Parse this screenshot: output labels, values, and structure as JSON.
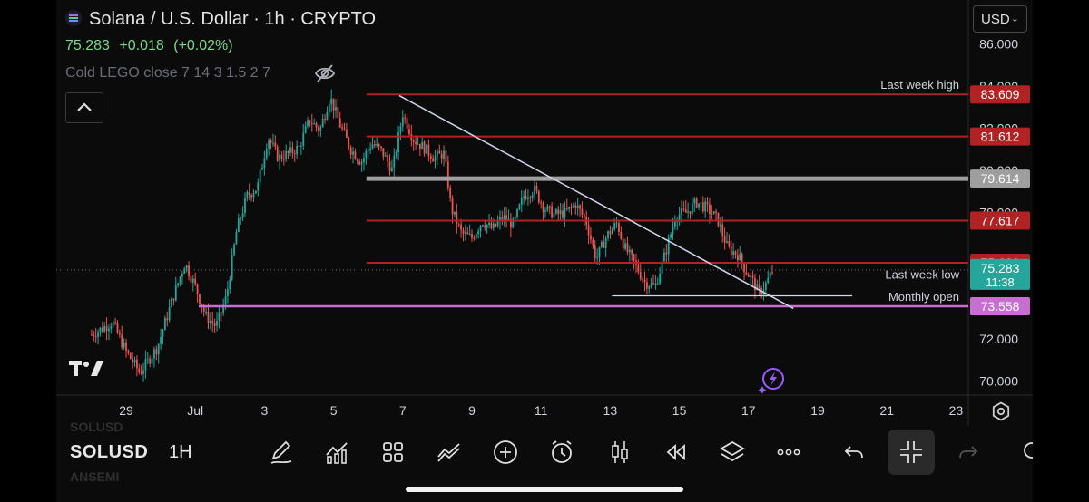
{
  "header": {
    "title": "Solana / U.S. Dollar · 1h · CRYPTO",
    "last_price": "75.283",
    "change": "+0.018",
    "change_pct": "(+0.02%)",
    "indicator": "Cold LEGO close 7 14 3 1.5 2 7"
  },
  "currency": {
    "label": "USD"
  },
  "toolbar": {
    "symbol": "SOLUSD",
    "interval": "1H",
    "ghost_top": "SOLUSD",
    "ghost_bottom": "ANSEMI"
  },
  "icons": [
    "eye-off-icon",
    "chevron-up-icon",
    "tradingview-logo-icon",
    "bolt-icon",
    "settings-icon",
    "pencil-icon",
    "indicators-icon",
    "layout-icon",
    "compare-icon",
    "add-icon",
    "alarm-icon",
    "candles-icon",
    "replay-icon",
    "layers-icon",
    "more-icon",
    "undo-icon",
    "fullscreen-exit-icon",
    "redo-icon"
  ],
  "colors": {
    "up": "#26a69a",
    "down": "#ef5350",
    "resistance": "#b22222",
    "grey": "#9e9e9e",
    "purple": "#c66fd1",
    "trend": "#d0d6ee",
    "current": "#26a69a"
  },
  "chart_data": {
    "type": "candlestick",
    "ylim": [
      69.6,
      86.8
    ],
    "y_ticks": [
      "86.000",
      "84.000",
      "82.000",
      "80.000",
      "78.000",
      "72.000",
      "70.000"
    ],
    "x_ticks": [
      {
        "label": "29",
        "day": -1
      },
      {
        "label": "Jul",
        "day": 1
      },
      {
        "label": "3",
        "day": 3
      },
      {
        "label": "5",
        "day": 5
      },
      {
        "label": "7",
        "day": 7
      },
      {
        "label": "9",
        "day": 9
      },
      {
        "label": "11",
        "day": 11
      },
      {
        "label": "13",
        "day": 13
      },
      {
        "label": "15",
        "day": 15
      },
      {
        "label": "17",
        "day": 17
      },
      {
        "label": "19",
        "day": 19
      },
      {
        "label": "21",
        "day": 21
      },
      {
        "label": "23",
        "day": 23
      }
    ],
    "horizontal_levels": [
      {
        "value": 83.609,
        "label": "83.609",
        "name": "Last week high",
        "color": "#b22222",
        "from_day": 5.95
      },
      {
        "value": 81.612,
        "label": "81.612",
        "name": "",
        "color": "#b22222",
        "from_day": 5.95
      },
      {
        "value": 79.614,
        "label": "79.614",
        "name": "",
        "color": "#9e9e9e",
        "from_day": 5.95
      },
      {
        "value": 77.617,
        "label": "77.617",
        "name": "",
        "color": "#b22222",
        "from_day": 5.95
      },
      {
        "value": 75.62,
        "label": "75.620",
        "name": "",
        "color": "#b22222",
        "from_day": 5.95
      },
      {
        "value": 73.558,
        "label": "73.558",
        "name": "Monthly open",
        "color": "#c66fd1",
        "from_day": 1.1
      }
    ],
    "last_week_low": {
      "value": 74.05,
      "name": "Last week low",
      "from_day": 13.05,
      "to_day": 20.0
    },
    "trendline": {
      "from": {
        "day": 6.9,
        "price": 83.55
      },
      "to": {
        "day": 18.3,
        "price": 73.45
      }
    },
    "current": {
      "price": "75.283",
      "countdown": "11:38",
      "value": 75.283
    },
    "path": [
      [
        -2.0,
        72.2
      ],
      [
        -1.4,
        72.8
      ],
      [
        -1.0,
        71.4
      ],
      [
        -0.6,
        70.4
      ],
      [
        -0.1,
        71.6
      ],
      [
        0.4,
        74.2
      ],
      [
        0.7,
        75.6
      ],
      [
        1.0,
        74.5
      ],
      [
        1.3,
        73.1
      ],
      [
        1.6,
        72.6
      ],
      [
        1.9,
        74.0
      ],
      [
        2.2,
        77.2
      ],
      [
        2.5,
        78.8
      ],
      [
        2.8,
        79.2
      ],
      [
        3.1,
        81.6
      ],
      [
        3.4,
        80.6
      ],
      [
        3.7,
        80.8
      ],
      [
        4.0,
        81.1
      ],
      [
        4.3,
        82.4
      ],
      [
        4.6,
        81.9
      ],
      [
        4.9,
        83.5
      ],
      [
        5.2,
        82.1
      ],
      [
        5.5,
        81.0
      ],
      [
        5.8,
        80.4
      ],
      [
        6.1,
        81.3
      ],
      [
        6.4,
        80.9
      ],
      [
        6.7,
        80.0
      ],
      [
        7.0,
        82.7
      ],
      [
        7.3,
        81.5
      ],
      [
        7.6,
        81.1
      ],
      [
        7.9,
        80.6
      ],
      [
        8.2,
        80.8
      ],
      [
        8.4,
        78.2
      ],
      [
        8.7,
        77.0
      ],
      [
        9.0,
        76.8
      ],
      [
        9.3,
        77.6
      ],
      [
        9.6,
        77.2
      ],
      [
        9.9,
        77.8
      ],
      [
        10.2,
        77.4
      ],
      [
        10.5,
        78.8
      ],
      [
        10.8,
        79.1
      ],
      [
        11.1,
        78.2
      ],
      [
        11.4,
        77.9
      ],
      [
        11.7,
        78.0
      ],
      [
        12.0,
        78.4
      ],
      [
        12.3,
        77.6
      ],
      [
        12.6,
        75.8
      ],
      [
        12.9,
        76.9
      ],
      [
        13.2,
        77.5
      ],
      [
        13.4,
        76.4
      ],
      [
        13.7,
        75.6
      ],
      [
        14.0,
        74.7
      ],
      [
        14.3,
        74.5
      ],
      [
        14.6,
        76.1
      ],
      [
        14.9,
        77.9
      ],
      [
        15.2,
        78.0
      ],
      [
        15.5,
        78.5
      ],
      [
        15.8,
        78.2
      ],
      [
        16.1,
        77.7
      ],
      [
        16.4,
        76.3
      ],
      [
        16.7,
        76.0
      ],
      [
        16.9,
        75.3
      ],
      [
        17.1,
        74.8
      ],
      [
        17.3,
        74.2
      ],
      [
        17.5,
        74.6
      ],
      [
        17.7,
        75.28
      ]
    ]
  }
}
